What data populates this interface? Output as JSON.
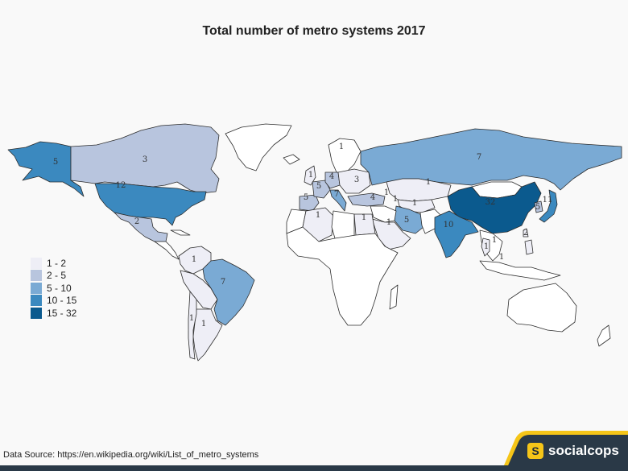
{
  "title": "Total number of metro systems 2017",
  "source": "Data Source: https://en.wikipedia.org/wiki/List_of_metro_systems",
  "brand": {
    "name": "socialcops",
    "mark": "S",
    "bar_color": "#2a3947",
    "accent_color": "#f5c518"
  },
  "legend": [
    {
      "label": "1 - 2",
      "color": "#eeeef6"
    },
    {
      "label": "2 - 5",
      "color": "#b8c5de"
    },
    {
      "label": "5 - 10",
      "color": "#7aaad4"
    },
    {
      "label": "10 - 15",
      "color": "#3b89bf"
    },
    {
      "label": "15 - 32",
      "color": "#0b5a8e"
    }
  ],
  "map_labels": {
    "alaska": "5",
    "canada": "3",
    "usa": "12",
    "mexico": "2",
    "brazil": "7",
    "argentina": "1",
    "russia": "7",
    "kazakhstan": "1",
    "china": "32",
    "japan": "11",
    "india": "10",
    "iran": "5",
    "algeria": "1",
    "egypt": "1",
    "saudi": "1",
    "turkey": "4",
    "azerbaijan": "1",
    "thailand": "1",
    "chile": "1",
    "venezuela": "1",
    "philippines": "1",
    "belarus": "1",
    "spain": "5",
    "france": "5",
    "italy": "7",
    "germany": "4",
    "ukraine": "3",
    "uk": "1",
    "korea": "5",
    "taiwan": "2",
    "vietnam": "1",
    "uzbekistan": "1",
    "georgia": "1"
  }
}
